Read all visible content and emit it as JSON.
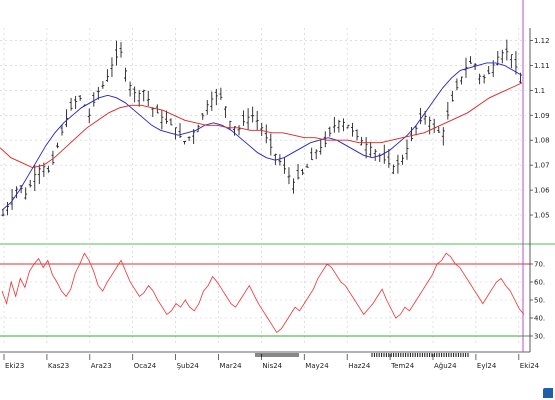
{
  "chart_data": [
    {
      "panel": "price",
      "type": "candlestick",
      "title": "",
      "xlabel": "",
      "ylabel": "",
      "ylim": [
        1.04,
        1.125
      ],
      "y_ticks": [
        1.05,
        1.06,
        1.07,
        1.08,
        1.09,
        1.1,
        1.11,
        1.12
      ],
      "y_tick_labels": [
        "1.05",
        "1.06",
        "1.07",
        "1.08",
        "1.09",
        "1.1",
        "1.11",
        "1.12"
      ],
      "grid": true,
      "series": [
        {
          "kind": "ohlc-bars",
          "color": "#222222",
          "approx_close_path": [
            1.05,
            1.056,
            1.062,
            1.058,
            1.066,
            1.07,
            1.067,
            1.078,
            1.088,
            1.095,
            1.097,
            1.09,
            1.099,
            1.103,
            1.111,
            1.116,
            1.103,
            1.098,
            1.1,
            1.093,
            1.09,
            1.087,
            1.085,
            1.079,
            1.082,
            1.086,
            1.094,
            1.098,
            1.097,
            1.087,
            1.084,
            1.089,
            1.09,
            1.085,
            1.078,
            1.073,
            1.068,
            1.063,
            1.066,
            1.07,
            1.076,
            1.078,
            1.085,
            1.088,
            1.086,
            1.082,
            1.079,
            1.077,
            1.074,
            1.071,
            1.069,
            1.073,
            1.08,
            1.087,
            1.09,
            1.085,
            1.082,
            1.093,
            1.102,
            1.109,
            1.112,
            1.104,
            1.107,
            1.113,
            1.116,
            1.114,
            1.103
          ]
        },
        {
          "kind": "moving-average-short",
          "color": "#2222cc",
          "values": [
            1.052,
            1.055,
            1.06,
            1.066,
            1.072,
            1.078,
            1.083,
            1.087,
            1.09,
            1.093,
            1.095,
            1.097,
            1.098,
            1.097,
            1.095,
            1.092,
            1.089,
            1.086,
            1.084,
            1.083,
            1.082,
            1.083,
            1.084,
            1.086,
            1.087,
            1.086,
            1.084,
            1.081,
            1.078,
            1.075,
            1.073,
            1.072,
            1.073,
            1.075,
            1.077,
            1.079,
            1.08,
            1.081,
            1.08,
            1.078,
            1.076,
            1.074,
            1.073,
            1.074,
            1.076,
            1.079,
            1.082,
            1.086,
            1.091,
            1.096,
            1.101,
            1.105,
            1.108,
            1.109,
            1.11,
            1.111,
            1.111,
            1.11,
            1.108,
            1.106
          ]
        },
        {
          "kind": "moving-average-long",
          "color": "#dd2222",
          "values": [
            1.077,
            1.073,
            1.071,
            1.069,
            1.07,
            1.073,
            1.077,
            1.081,
            1.085,
            1.088,
            1.091,
            1.093,
            1.094,
            1.094,
            1.093,
            1.092,
            1.09,
            1.088,
            1.087,
            1.086,
            1.086,
            1.085,
            1.085,
            1.084,
            1.084,
            1.083,
            1.083,
            1.082,
            1.081,
            1.081,
            1.08,
            1.08,
            1.08,
            1.079,
            1.079,
            1.079,
            1.08,
            1.081,
            1.082,
            1.083,
            1.085,
            1.087,
            1.089,
            1.091,
            1.094,
            1.097,
            1.099,
            1.101,
            1.103
          ]
        }
      ],
      "annotations": [
        {
          "type": "vertical-line",
          "color": "#b03cc8",
          "at_index": "last"
        }
      ]
    },
    {
      "panel": "oscillator",
      "type": "line",
      "title": "",
      "ylim": [
        25,
        80
      ],
      "y_ticks": [
        30,
        40,
        50,
        60,
        70
      ],
      "y_tick_labels": [
        "30.",
        "40.",
        "50.",
        "60.",
        "70."
      ],
      "levels": [
        {
          "value": 70,
          "color": "#dd3333"
        },
        {
          "value": 30,
          "color": "#33aa33"
        }
      ],
      "grid": true,
      "series": [
        {
          "color": "#ee3333",
          "values": [
            55,
            48,
            60,
            52,
            62,
            57,
            66,
            70,
            73,
            68,
            72,
            64,
            60,
            55,
            52,
            56,
            65,
            70,
            76,
            72,
            66,
            58,
            55,
            60,
            64,
            68,
            72,
            66,
            60,
            56,
            52,
            54,
            58,
            55,
            50,
            46,
            42,
            44,
            48,
            46,
            50,
            46,
            44,
            48,
            55,
            58,
            63,
            60,
            56,
            52,
            48,
            46,
            50,
            54,
            58,
            53,
            48,
            44,
            40,
            36,
            32,
            34,
            38,
            42,
            46,
            44,
            48,
            52,
            56,
            62,
            66,
            70,
            68,
            64,
            60,
            58,
            54,
            50,
            46,
            42,
            45,
            48,
            52,
            56,
            50,
            45,
            40,
            42,
            46,
            44,
            48,
            52,
            56,
            60,
            64,
            70,
            72,
            76,
            74,
            70,
            68,
            64,
            60,
            56,
            52,
            48,
            52,
            56,
            60,
            62,
            58,
            55,
            50,
            45,
            42
          ]
        }
      ]
    }
  ],
  "x_axis": {
    "labels": [
      "Eki23",
      "Kas23",
      "Ara23",
      "Oca24",
      "Şub24",
      "Mar24",
      "Nis24",
      "May24",
      "Haz24",
      "Tem24",
      "Ağu24",
      "Eyl24",
      "Eki24"
    ]
  },
  "colors": {
    "grid": "#cccccc",
    "bars": "#222222",
    "cursor": "#b03cc8",
    "separator": "#55bb55"
  },
  "logo_icon": "metatrader-logo-icon"
}
